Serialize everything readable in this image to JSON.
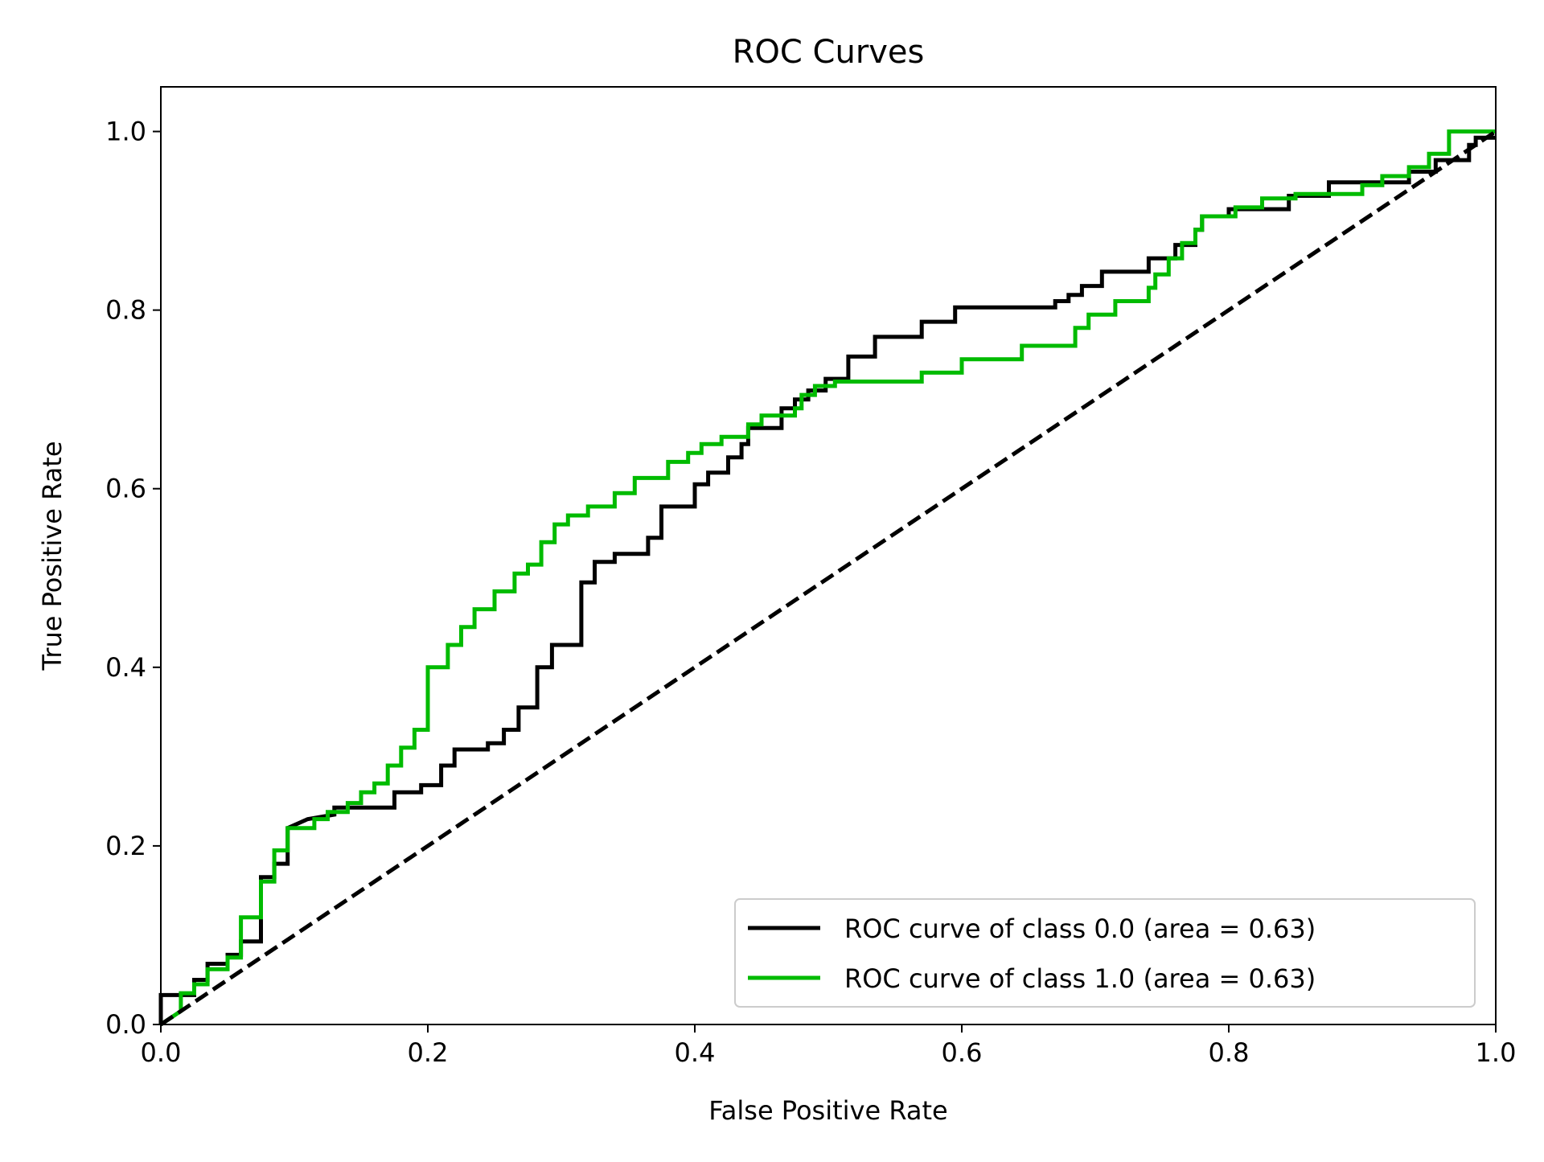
{
  "chart_data": {
    "type": "line",
    "title": "ROC Curves",
    "xlabel": "False Positive Rate",
    "ylabel": "True Positive Rate",
    "xlim": [
      0.0,
      1.0
    ],
    "ylim": [
      0.0,
      1.05
    ],
    "xticks": [
      "0.0",
      "0.2",
      "0.4",
      "0.6",
      "0.8",
      "1.0"
    ],
    "yticks": [
      "0.0",
      "0.2",
      "0.4",
      "0.6",
      "0.8",
      "1.0"
    ],
    "grid": false,
    "legend_position": "lower-right",
    "reference_line": {
      "x": [
        0,
        1
      ],
      "y": [
        0,
        1
      ],
      "color": "#000000",
      "style": "dashed"
    },
    "series": [
      {
        "name": "ROC curve of class 0.0 (area = 0.63)",
        "color": "#000000",
        "x": [
          0.0,
          0.0,
          0.025,
          0.025,
          0.035,
          0.035,
          0.05,
          0.05,
          0.06,
          0.06,
          0.075,
          0.075,
          0.085,
          0.085,
          0.095,
          0.095,
          0.11,
          0.13,
          0.13,
          0.175,
          0.175,
          0.195,
          0.195,
          0.21,
          0.21,
          0.22,
          0.22,
          0.245,
          0.245,
          0.257,
          0.257,
          0.268,
          0.268,
          0.282,
          0.282,
          0.293,
          0.293,
          0.315,
          0.315,
          0.325,
          0.325,
          0.34,
          0.34,
          0.365,
          0.365,
          0.375,
          0.375,
          0.4,
          0.4,
          0.41,
          0.41,
          0.425,
          0.425,
          0.435,
          0.435,
          0.44,
          0.44,
          0.465,
          0.465,
          0.475,
          0.475,
          0.485,
          0.485,
          0.498,
          0.498,
          0.515,
          0.515,
          0.535,
          0.535,
          0.57,
          0.57,
          0.595,
          0.595,
          0.67,
          0.67,
          0.68,
          0.68,
          0.69,
          0.69,
          0.705,
          0.705,
          0.74,
          0.74,
          0.76,
          0.76,
          0.775,
          0.775,
          0.78,
          0.78,
          0.8,
          0.8,
          0.845,
          0.845,
          0.875,
          0.875,
          0.935,
          0.935,
          0.955,
          0.955,
          0.98,
          0.98,
          0.985,
          0.985,
          1.0
        ],
        "y": [
          0.0,
          0.033,
          0.033,
          0.05,
          0.05,
          0.068,
          0.068,
          0.078,
          0.078,
          0.093,
          0.093,
          0.165,
          0.165,
          0.18,
          0.18,
          0.22,
          0.23,
          0.235,
          0.243,
          0.243,
          0.26,
          0.26,
          0.268,
          0.268,
          0.29,
          0.29,
          0.308,
          0.308,
          0.315,
          0.315,
          0.33,
          0.33,
          0.355,
          0.355,
          0.4,
          0.4,
          0.425,
          0.425,
          0.495,
          0.495,
          0.518,
          0.518,
          0.527,
          0.527,
          0.545,
          0.545,
          0.58,
          0.58,
          0.605,
          0.605,
          0.618,
          0.618,
          0.635,
          0.635,
          0.65,
          0.65,
          0.668,
          0.668,
          0.69,
          0.69,
          0.7,
          0.7,
          0.71,
          0.71,
          0.723,
          0.723,
          0.748,
          0.748,
          0.77,
          0.77,
          0.787,
          0.787,
          0.803,
          0.803,
          0.81,
          0.81,
          0.817,
          0.817,
          0.827,
          0.827,
          0.843,
          0.843,
          0.858,
          0.858,
          0.873,
          0.873,
          0.89,
          0.89,
          0.905,
          0.905,
          0.913,
          0.913,
          0.928,
          0.928,
          0.943,
          0.943,
          0.955,
          0.955,
          0.968,
          0.968,
          0.985,
          0.985,
          0.993,
          0.993
        ]
      },
      {
        "name": "ROC curve of class 1.0 (area = 0.63)",
        "color": "#00bb00",
        "x": [
          0.0,
          0.015,
          0.015,
          0.025,
          0.025,
          0.035,
          0.035,
          0.05,
          0.05,
          0.06,
          0.06,
          0.075,
          0.075,
          0.085,
          0.085,
          0.095,
          0.095,
          0.115,
          0.115,
          0.125,
          0.125,
          0.14,
          0.14,
          0.15,
          0.15,
          0.16,
          0.16,
          0.17,
          0.17,
          0.18,
          0.18,
          0.19,
          0.19,
          0.2,
          0.2,
          0.215,
          0.215,
          0.225,
          0.225,
          0.235,
          0.235,
          0.25,
          0.25,
          0.265,
          0.265,
          0.275,
          0.275,
          0.285,
          0.285,
          0.295,
          0.295,
          0.305,
          0.305,
          0.32,
          0.32,
          0.34,
          0.34,
          0.355,
          0.355,
          0.38,
          0.38,
          0.395,
          0.395,
          0.405,
          0.405,
          0.42,
          0.42,
          0.44,
          0.44,
          0.45,
          0.45,
          0.475,
          0.475,
          0.48,
          0.48,
          0.49,
          0.49,
          0.505,
          0.505,
          0.57,
          0.57,
          0.6,
          0.6,
          0.645,
          0.645,
          0.685,
          0.685,
          0.695,
          0.695,
          0.715,
          0.715,
          0.74,
          0.74,
          0.745,
          0.745,
          0.755,
          0.755,
          0.765,
          0.765,
          0.775,
          0.775,
          0.78,
          0.78,
          0.805,
          0.805,
          0.825,
          0.825,
          0.85,
          0.85,
          0.9,
          0.9,
          0.915,
          0.915,
          0.935,
          0.935,
          0.95,
          0.95,
          0.965,
          0.965,
          1.0
        ],
        "y": [
          0.0,
          0.015,
          0.035,
          0.035,
          0.045,
          0.045,
          0.062,
          0.062,
          0.075,
          0.075,
          0.12,
          0.12,
          0.16,
          0.16,
          0.195,
          0.195,
          0.22,
          0.22,
          0.23,
          0.23,
          0.238,
          0.238,
          0.248,
          0.248,
          0.26,
          0.26,
          0.27,
          0.27,
          0.29,
          0.29,
          0.31,
          0.31,
          0.33,
          0.33,
          0.4,
          0.4,
          0.425,
          0.425,
          0.445,
          0.445,
          0.465,
          0.465,
          0.485,
          0.485,
          0.505,
          0.505,
          0.515,
          0.515,
          0.54,
          0.54,
          0.56,
          0.56,
          0.57,
          0.57,
          0.58,
          0.58,
          0.595,
          0.595,
          0.612,
          0.612,
          0.63,
          0.63,
          0.64,
          0.64,
          0.65,
          0.65,
          0.658,
          0.658,
          0.672,
          0.672,
          0.682,
          0.682,
          0.69,
          0.69,
          0.705,
          0.705,
          0.715,
          0.715,
          0.72,
          0.72,
          0.73,
          0.73,
          0.745,
          0.745,
          0.76,
          0.76,
          0.78,
          0.78,
          0.795,
          0.795,
          0.81,
          0.81,
          0.825,
          0.825,
          0.84,
          0.84,
          0.858,
          0.858,
          0.875,
          0.875,
          0.89,
          0.89,
          0.905,
          0.905,
          0.915,
          0.915,
          0.925,
          0.925,
          0.93,
          0.93,
          0.94,
          0.94,
          0.95,
          0.95,
          0.96,
          0.96,
          0.975,
          0.975,
          1.0,
          1.0
        ]
      }
    ]
  }
}
